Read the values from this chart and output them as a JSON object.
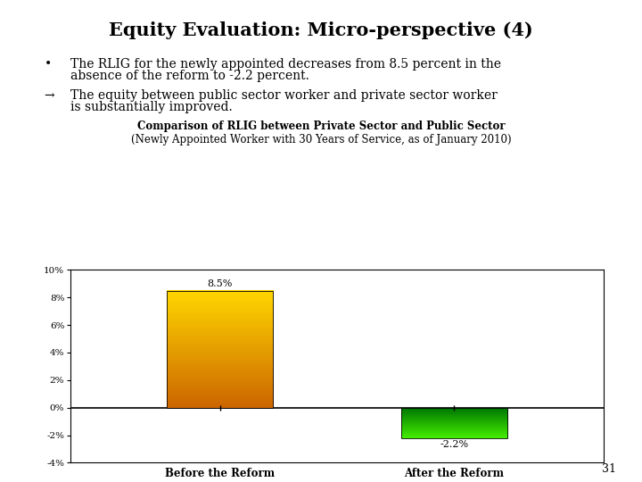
{
  "title": "Equity Evaluation: Micro-perspective (4)",
  "bullet1_prefix": "•  ",
  "bullet1": "The RLIG for the newly appointed decreases from 8.5 percent in the\n   absence of the reform to -2.2 percent.",
  "bullet2_prefix": "→ ",
  "bullet2": "The equity between public sector worker and private sector worker\n   is substantially improved.",
  "chart_title_bold": "Comparison of RLIG between Private Sector and Public Sector",
  "chart_subtitle": "(Newly Appointed Worker with 30 Years of Service, as of January 2010)",
  "categories": [
    "Before the Reform",
    "After the Reform"
  ],
  "values": [
    8.5,
    -2.2
  ],
  "bar_color_top1": "#FFD700",
  "bar_color_bottom1": "#CC6600",
  "bar_color_top2": "#44EE00",
  "bar_color_bottom2": "#007700",
  "ylim": [
    -4,
    10
  ],
  "yticks": [
    -4,
    -2,
    0,
    2,
    4,
    6,
    8,
    10
  ],
  "ytick_labels": [
    "-4%",
    "-2%",
    "0%",
    "2%",
    "4%",
    "6%",
    "8%",
    "10%"
  ],
  "value_labels": [
    "8.5%",
    "-2.2%"
  ],
  "background_color": "#FFFFFF",
  "page_number": "31"
}
